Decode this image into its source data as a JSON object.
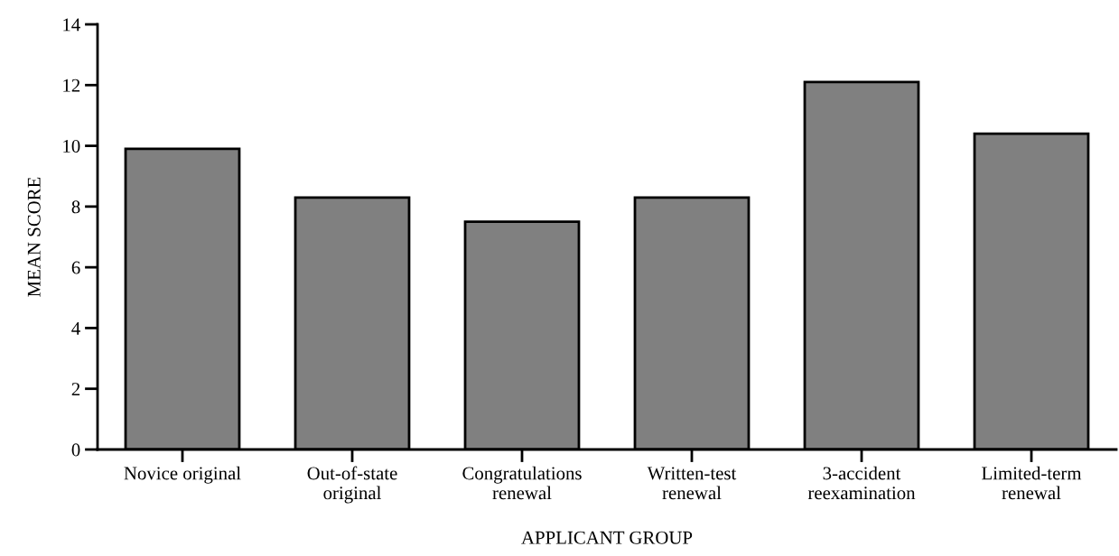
{
  "chart_data": {
    "type": "bar",
    "xlabel": "APPLICANT GROUP",
    "ylabel": "MEAN SCORE",
    "categories": [
      "Novice original",
      "Out-of-state\noriginal",
      "Congratulations\nrenewal",
      "Written-test\nrenewal",
      "3-accident\nreexamination",
      "Limited-term\nrenewal"
    ],
    "values": [
      9.9,
      8.3,
      7.5,
      8.3,
      12.1,
      10.4
    ],
    "color": "#808080",
    "ylim": [
      0,
      14
    ],
    "yticks": [
      0,
      2,
      4,
      6,
      8,
      10,
      12,
      14
    ],
    "grid": false,
    "legend": false
  }
}
